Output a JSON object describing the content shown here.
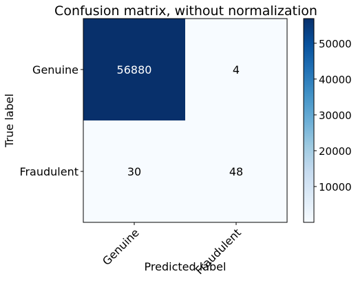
{
  "chart_data": {
    "type": "heatmap",
    "title": "Confusion matrix, without normalization",
    "xlabel": "Predicted label",
    "ylabel": "True label",
    "x_categories": [
      "Genuine",
      "Fraudulent"
    ],
    "y_categories": [
      "Genuine",
      "Fraudulent"
    ],
    "values": [
      [
        56880,
        4
      ],
      [
        30,
        48
      ]
    ],
    "colormap": "Blues",
    "colorbar": {
      "ticks": [
        10000,
        20000,
        30000,
        40000,
        50000
      ],
      "tick_labels": [
        "10000",
        "20000",
        "30000",
        "40000",
        "50000"
      ],
      "range": [
        4,
        56880
      ]
    },
    "grid": false,
    "colors": {
      "low": "#f7fbff",
      "high": "#08306b",
      "text_on_dark": "#ffffff",
      "text_on_light": "#000000"
    }
  }
}
